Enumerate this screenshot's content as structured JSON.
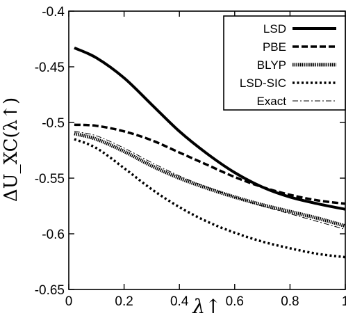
{
  "chart_data": {
    "type": "line",
    "xlabel": "λ↑",
    "ylabel": "ΔU_XC(λ↑)",
    "xlim": [
      0,
      1
    ],
    "ylim": [
      -0.65,
      -0.4
    ],
    "x_ticks": [
      "0",
      "0.2",
      "0.4",
      "0.6",
      "0.8",
      "1"
    ],
    "y_ticks": [
      "-0.4",
      "-0.45",
      "-0.5",
      "-0.55",
      "-0.6",
      "-0.65"
    ],
    "grid": false,
    "legend_position": "top-right",
    "series": [
      {
        "name": "LSD",
        "style": "solid-thick",
        "points": [
          [
            0.02,
            -0.433
          ],
          [
            0.1,
            -0.442
          ],
          [
            0.2,
            -0.46
          ],
          [
            0.3,
            -0.484
          ],
          [
            0.4,
            -0.508
          ],
          [
            0.5,
            -0.528
          ],
          [
            0.6,
            -0.545
          ],
          [
            0.7,
            -0.558
          ],
          [
            0.8,
            -0.567
          ],
          [
            0.9,
            -0.573
          ],
          [
            1.0,
            -0.578
          ]
        ]
      },
      {
        "name": "PBE",
        "style": "dashed",
        "points": [
          [
            0.02,
            -0.502
          ],
          [
            0.1,
            -0.503
          ],
          [
            0.2,
            -0.508
          ],
          [
            0.3,
            -0.516
          ],
          [
            0.4,
            -0.527
          ],
          [
            0.5,
            -0.538
          ],
          [
            0.6,
            -0.549
          ],
          [
            0.7,
            -0.558
          ],
          [
            0.8,
            -0.565
          ],
          [
            0.9,
            -0.57
          ],
          [
            1.0,
            -0.573
          ]
        ]
      },
      {
        "name": "BLYP",
        "style": "hatched",
        "points": [
          [
            0.02,
            -0.51
          ],
          [
            0.1,
            -0.515
          ],
          [
            0.2,
            -0.526
          ],
          [
            0.3,
            -0.539
          ],
          [
            0.4,
            -0.55
          ],
          [
            0.5,
            -0.559
          ],
          [
            0.6,
            -0.567
          ],
          [
            0.7,
            -0.574
          ],
          [
            0.8,
            -0.58
          ],
          [
            0.9,
            -0.586
          ],
          [
            1.0,
            -0.593
          ]
        ]
      },
      {
        "name": "LSD-SIC",
        "style": "dotted",
        "points": [
          [
            0.02,
            -0.515
          ],
          [
            0.1,
            -0.523
          ],
          [
            0.2,
            -0.541
          ],
          [
            0.3,
            -0.56
          ],
          [
            0.4,
            -0.576
          ],
          [
            0.5,
            -0.589
          ],
          [
            0.6,
            -0.599
          ],
          [
            0.7,
            -0.607
          ],
          [
            0.8,
            -0.613
          ],
          [
            0.9,
            -0.618
          ],
          [
            1.0,
            -0.621
          ]
        ]
      },
      {
        "name": "Exact",
        "style": "dash-dot-thin",
        "points": [
          [
            0.02,
            -0.508
          ],
          [
            0.1,
            -0.512
          ],
          [
            0.2,
            -0.523
          ],
          [
            0.3,
            -0.536
          ],
          [
            0.4,
            -0.548
          ],
          [
            0.5,
            -0.558
          ],
          [
            0.6,
            -0.567
          ],
          [
            0.7,
            -0.575
          ],
          [
            0.8,
            -0.582
          ],
          [
            0.9,
            -0.589
          ],
          [
            1.0,
            -0.596
          ]
        ]
      }
    ],
    "colors": {
      "line": "#000000",
      "background": "#ffffff"
    }
  }
}
